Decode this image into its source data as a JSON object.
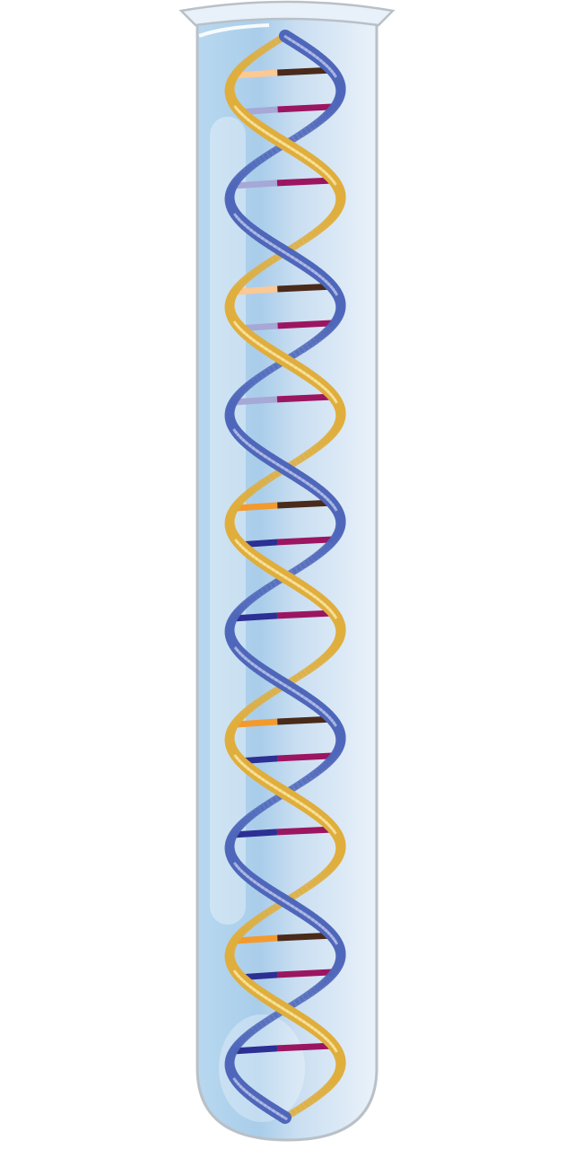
{
  "illustration": {
    "subject": "dna-double-helix-in-test-tube",
    "icon": "dna-icon",
    "colors": {
      "background": "#ffffff",
      "tube_light": "#e6f0f9",
      "tube_dark": "#aacfea",
      "tube_rim": "#b9c0c7",
      "strand_gold": "#e0ae3c",
      "strand_gold_light": "#fbe7a4",
      "strand_blue": "#4f67ba",
      "strand_blue_light": "#b8c2ea",
      "base_orange": "#f39a2e",
      "base_peach": "#fcc894",
      "base_navy": "#2c2f93",
      "base_lavender": "#a6a8d6",
      "base_brown": "#4a2a1a",
      "base_magenta": "#9c1561"
    },
    "helix": {
      "turns": 5,
      "base_pairs_per_turn": 4,
      "pair_types": [
        "orange-brown",
        "navy-magenta",
        "orange-brown",
        "navy-magenta"
      ]
    }
  }
}
